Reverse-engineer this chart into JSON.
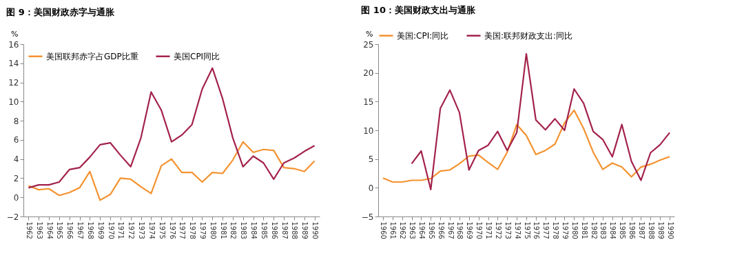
{
  "chart_data": [
    {
      "type": "line",
      "title": "图 9：美国财政赤字与通胀",
      "ylabel": "%",
      "legend": "top left",
      "grid": false,
      "categories": [
        "1962",
        "1963",
        "1964",
        "1965",
        "1966",
        "1967",
        "1968",
        "1969",
        "1970",
        "1971",
        "1972",
        "1973",
        "1974",
        "1975",
        "1976",
        "1977",
        "1978",
        "1979",
        "1980",
        "1981",
        "1982",
        "1983",
        "1984",
        "1985",
        "1986",
        "1987",
        "1988",
        "1989",
        "1990"
      ],
      "ylim": [
        -2,
        16
      ],
      "yticks": [
        -2,
        0,
        2,
        4,
        6,
        8,
        10,
        12,
        14,
        16
      ],
      "series": [
        {
          "name": "美国联邦赤字占GDP比重",
          "color": "#f4922f",
          "values": [
            1.2,
            0.8,
            0.9,
            0.2,
            0.5,
            1.0,
            2.7,
            -0.3,
            0.3,
            2.0,
            1.9,
            1.1,
            0.4,
            3.3,
            4.0,
            2.6,
            2.6,
            1.6,
            2.6,
            2.5,
            3.9,
            5.8,
            4.7,
            5.0,
            4.9,
            3.1,
            3.0,
            2.7,
            3.8
          ]
        },
        {
          "name": "美国CPI同比",
          "color": "#a3224a",
          "values": [
            1.0,
            1.3,
            1.3,
            1.6,
            2.9,
            3.1,
            4.2,
            5.5,
            5.7,
            4.4,
            3.2,
            6.2,
            11.0,
            9.1,
            5.8,
            6.5,
            7.6,
            11.3,
            13.5,
            10.3,
            6.2,
            3.2,
            4.3,
            3.6,
            1.9,
            3.6,
            4.1,
            4.8,
            5.4
          ]
        }
      ]
    },
    {
      "type": "line",
      "title": "图 10：美国财政支出与通胀",
      "ylabel": "%",
      "legend": "top",
      "grid": false,
      "categories": [
        "1960",
        "1961",
        "1962",
        "1963",
        "1964",
        "1965",
        "1966",
        "1967",
        "1968",
        "1969",
        "1970",
        "1971",
        "1972",
        "1973",
        "1974",
        "1975",
        "1976",
        "1977",
        "1978",
        "1979",
        "1980",
        "1981",
        "1982",
        "1983",
        "1984",
        "1985",
        "1986",
        "1987",
        "1988",
        "1989",
        "1990"
      ],
      "ylim": [
        -5,
        25
      ],
      "yticks": [
        -5,
        0,
        5,
        10,
        15,
        20,
        25
      ],
      "series": [
        {
          "name": "美国:CPI:同比",
          "color": "#f4922f",
          "values": [
            1.7,
            1.0,
            1.0,
            1.3,
            1.3,
            1.6,
            2.9,
            3.1,
            4.2,
            5.5,
            5.7,
            4.4,
            3.2,
            6.2,
            11.0,
            9.1,
            5.8,
            6.5,
            7.6,
            11.3,
            13.5,
            10.3,
            6.2,
            3.2,
            4.3,
            3.6,
            1.9,
            3.6,
            4.1,
            4.8,
            5.4
          ]
        },
        {
          "name": "美国:联邦财政支出:同比",
          "color": "#a3224a",
          "values": [
            null,
            null,
            null,
            4.2,
            6.4,
            -0.3,
            13.8,
            17.0,
            13.1,
            3.1,
            6.5,
            7.4,
            9.8,
            6.5,
            9.6,
            23.3,
            11.8,
            10.1,
            12.0,
            10.0,
            17.2,
            14.7,
            9.8,
            8.4,
            5.4,
            11.0,
            4.6,
            1.3,
            6.1,
            7.5,
            9.6
          ]
        }
      ]
    }
  ]
}
